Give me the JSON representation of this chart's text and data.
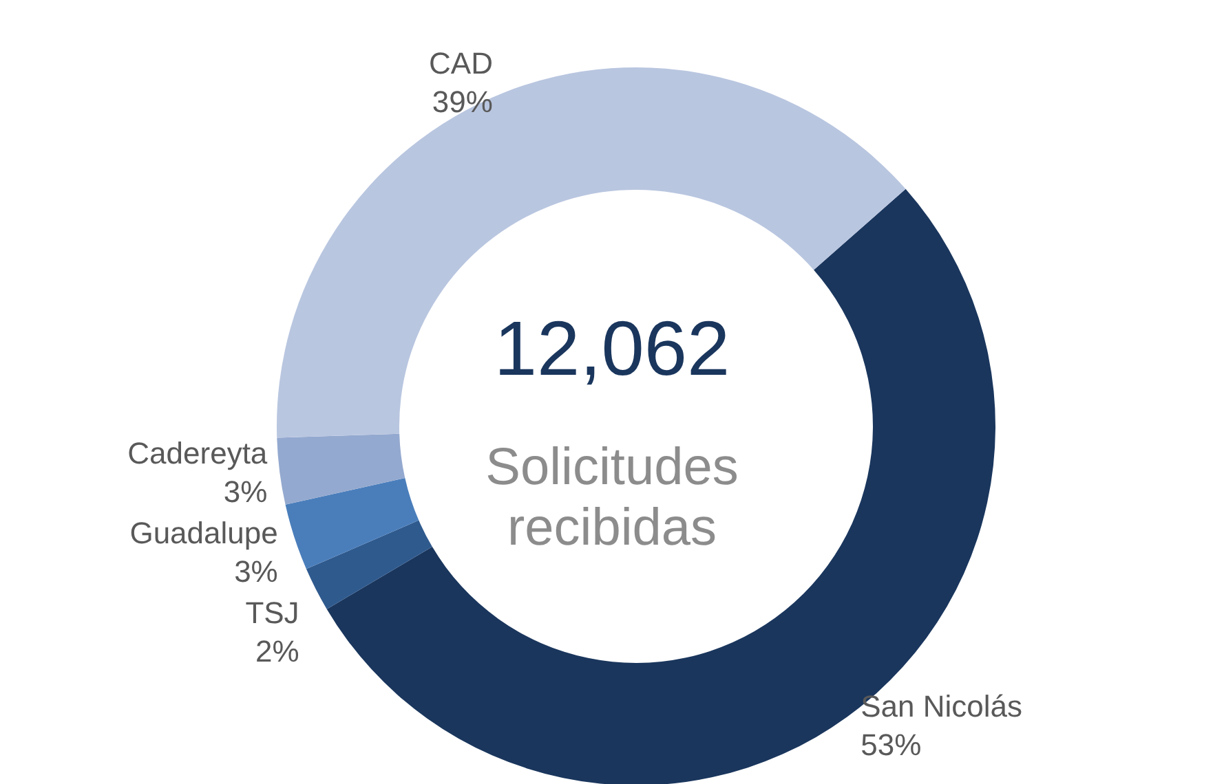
{
  "chart_data": {
    "type": "donut",
    "categories": [
      "San Nicolás",
      "TSJ",
      "Guadalupe",
      "Cadereyta",
      "CAD"
    ],
    "values": [
      53,
      2,
      3,
      3,
      39
    ],
    "value_labels": [
      "53%",
      "2%",
      "3%",
      "3%",
      "39%"
    ],
    "colors": [
      "#1a365d",
      "#2f5a8e",
      "#4a7ebb",
      "#94a9cf",
      "#b9c6e0"
    ],
    "annotations": [
      "12,062",
      "Solicitudes recibidas"
    ],
    "legend": false
  }
}
